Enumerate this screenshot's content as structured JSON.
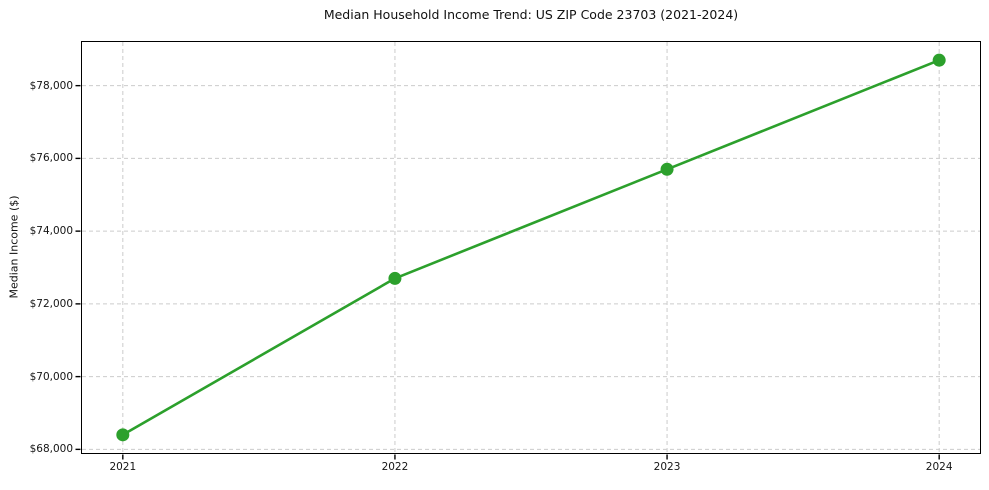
{
  "chart_data": {
    "type": "line",
    "title": "Median Household Income Trend: US ZIP Code 23703 (2021-2024)",
    "xlabel": "",
    "ylabel": "Median Income ($)",
    "x": [
      2021,
      2022,
      2023,
      2024
    ],
    "x_tick_labels": [
      "2021",
      "2022",
      "2023",
      "2024"
    ],
    "series": [
      {
        "values": [
          68400,
          72700,
          75700,
          78700
        ],
        "color": "#2ca02c",
        "marker": "o",
        "line_width": 2.6,
        "marker_radius": 6.5
      }
    ],
    "y_ticks": [
      68000,
      70000,
      72000,
      74000,
      76000,
      78000
    ],
    "y_tick_labels": [
      "$68,000",
      "$70,000",
      "$72,000",
      "$74,000",
      "$76,000",
      "$78,000"
    ],
    "ylim": [
      67900,
      79200
    ],
    "xlim": [
      2020.85,
      2024.15
    ],
    "grid": {
      "show": true,
      "axes": "both",
      "style": "dashed",
      "color": "#cccccc"
    },
    "legend": "none",
    "spine_color": "#000000",
    "background": "#ffffff",
    "text_color": "#151515"
  }
}
